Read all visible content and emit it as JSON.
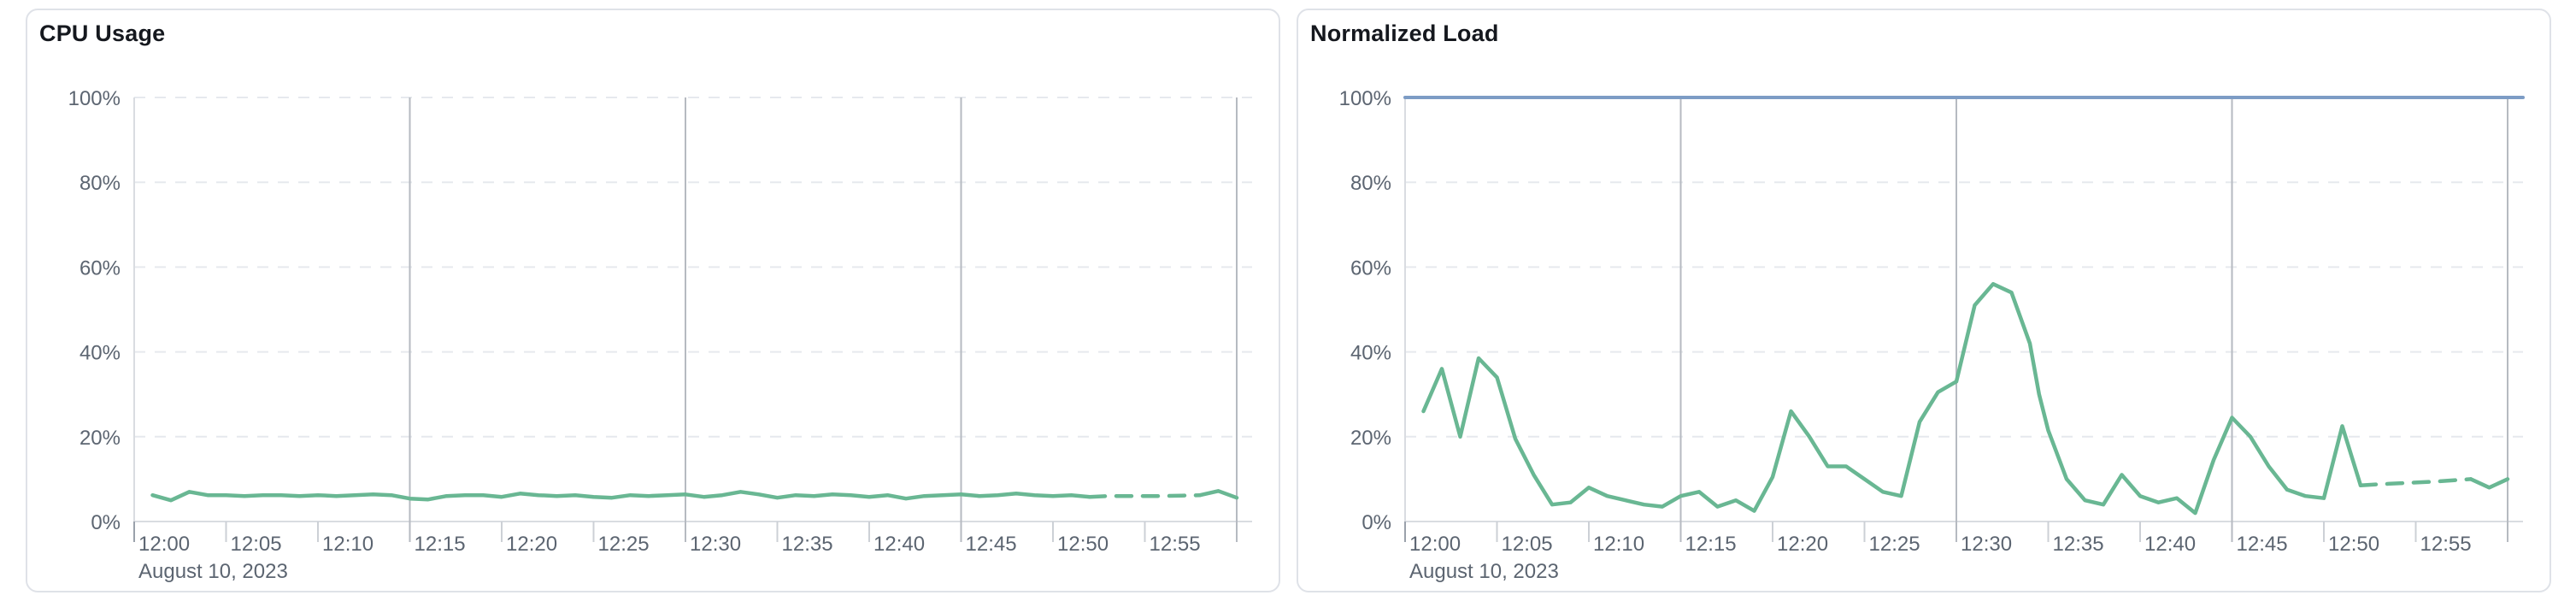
{
  "page": {
    "background": "#ffffff"
  },
  "colors": {
    "series_green": "#69b793",
    "limit_blue": "#7d9cc5",
    "grid_dashed": "#e6e9ee",
    "grid_major_vertical": "#b6bac1",
    "axis_line": "#d9dce1",
    "tick_minor": "#ccd0d6",
    "tick_edge": "#9aa1ab",
    "label_text": "#5c6571",
    "title_text": "#15181e"
  },
  "chart_data": [
    {
      "type": "line",
      "title": "CPU Usage",
      "date_label": "August 10, 2023",
      "xlim_minutes": [
        0,
        60
      ],
      "ylim_percent": [
        0,
        100
      ],
      "y_ticks_percent": [
        0,
        20,
        40,
        60,
        80,
        100
      ],
      "y_tick_suffix": "%",
      "x_ticks": [
        {
          "minute": 0,
          "label": "12:00"
        },
        {
          "minute": 5,
          "label": "12:05"
        },
        {
          "minute": 10,
          "label": "12:10"
        },
        {
          "minute": 15,
          "label": "12:15"
        },
        {
          "minute": 20,
          "label": "12:20"
        },
        {
          "minute": 25,
          "label": "12:25"
        },
        {
          "minute": 30,
          "label": "12:30"
        },
        {
          "minute": 35,
          "label": "12:35"
        },
        {
          "minute": 40,
          "label": "12:40"
        },
        {
          "minute": 45,
          "label": "12:45"
        },
        {
          "minute": 50,
          "label": "12:50"
        },
        {
          "minute": 55,
          "label": "12:55"
        }
      ],
      "major_gridline_minutes": [
        15,
        30,
        45,
        60
      ],
      "grid": {
        "horizontal": "dashed",
        "vertical_major": "solid"
      },
      "legend": "none",
      "series": [
        {
          "name": "cpu-usage-percent",
          "color": "#69b793",
          "width": 4.5,
          "unit": "%",
          "segments": [
            {
              "style": "solid",
              "points": [
                [
                  1,
                  6.2
                ],
                [
                  2,
                  5.0
                ],
                [
                  3,
                  7.0
                ],
                [
                  4,
                  6.2
                ],
                [
                  5,
                  6.2
                ],
                [
                  6,
                  6.0
                ],
                [
                  7,
                  6.2
                ],
                [
                  8,
                  6.2
                ],
                [
                  9,
                  6.0
                ],
                [
                  10,
                  6.2
                ],
                [
                  11,
                  6.0
                ],
                [
                  12,
                  6.2
                ],
                [
                  13,
                  6.4
                ],
                [
                  14,
                  6.2
                ],
                [
                  15,
                  5.4
                ],
                [
                  16,
                  5.2
                ],
                [
                  17,
                  6.0
                ],
                [
                  18,
                  6.2
                ],
                [
                  19,
                  6.2
                ],
                [
                  20,
                  5.8
                ],
                [
                  21,
                  6.6
                ],
                [
                  22,
                  6.2
                ],
                [
                  23,
                  6.0
                ],
                [
                  24,
                  6.2
                ],
                [
                  25,
                  5.8
                ],
                [
                  26,
                  5.6
                ],
                [
                  27,
                  6.2
                ],
                [
                  28,
                  6.0
                ],
                [
                  29,
                  6.2
                ],
                [
                  30,
                  6.4
                ],
                [
                  31,
                  5.8
                ],
                [
                  32,
                  6.2
                ],
                [
                  33,
                  7.0
                ],
                [
                  34,
                  6.4
                ],
                [
                  35,
                  5.6
                ],
                [
                  36,
                  6.2
                ],
                [
                  37,
                  6.0
                ],
                [
                  38,
                  6.4
                ],
                [
                  39,
                  6.2
                ],
                [
                  40,
                  5.8
                ],
                [
                  41,
                  6.2
                ],
                [
                  42,
                  5.4
                ],
                [
                  43,
                  6.0
                ],
                [
                  44,
                  6.2
                ],
                [
                  45,
                  6.4
                ],
                [
                  46,
                  6.0
                ],
                [
                  47,
                  6.2
                ],
                [
                  48,
                  6.6
                ],
                [
                  49,
                  6.2
                ],
                [
                  50,
                  6.0
                ],
                [
                  51,
                  6.2
                ],
                [
                  52,
                  5.8
                ]
              ]
            },
            {
              "style": "dashed",
              "points": [
                [
                  52,
                  5.8
                ],
                [
                  53,
                  6.0
                ],
                [
                  54,
                  6.0
                ],
                [
                  55,
                  6.0
                ],
                [
                  56,
                  6.0
                ],
                [
                  57,
                  6.1
                ],
                [
                  58,
                  6.2
                ]
              ]
            },
            {
              "style": "solid",
              "points": [
                [
                  58,
                  6.2
                ],
                [
                  59,
                  7.2
                ],
                [
                  60,
                  5.6
                ]
              ]
            }
          ]
        }
      ]
    },
    {
      "type": "line",
      "title": "Normalized Load",
      "date_label": "August 10, 2023",
      "xlim_minutes": [
        0,
        60
      ],
      "ylim_percent": [
        0,
        100
      ],
      "y_ticks_percent": [
        0,
        20,
        40,
        60,
        80,
        100
      ],
      "y_tick_suffix": "%",
      "x_ticks": [
        {
          "minute": 0,
          "label": "12:00"
        },
        {
          "minute": 5,
          "label": "12:05"
        },
        {
          "minute": 10,
          "label": "12:10"
        },
        {
          "minute": 15,
          "label": "12:15"
        },
        {
          "minute": 20,
          "label": "12:20"
        },
        {
          "minute": 25,
          "label": "12:25"
        },
        {
          "minute": 30,
          "label": "12:30"
        },
        {
          "minute": 35,
          "label": "12:35"
        },
        {
          "minute": 40,
          "label": "12:40"
        },
        {
          "minute": 45,
          "label": "12:45"
        },
        {
          "minute": 50,
          "label": "12:50"
        },
        {
          "minute": 55,
          "label": "12:55"
        }
      ],
      "major_gridline_minutes": [
        15,
        30,
        45,
        60
      ],
      "grid": {
        "horizontal": "dashed",
        "vertical_major": "solid"
      },
      "legend": "none",
      "series": [
        {
          "name": "normalized-load-percent",
          "color": "#69b793",
          "width": 4.5,
          "unit": "%",
          "segments": [
            {
              "style": "solid",
              "points": [
                [
                  1,
                  26
                ],
                [
                  2,
                  36
                ],
                [
                  3,
                  20
                ],
                [
                  4,
                  38.5
                ],
                [
                  5,
                  34
                ],
                [
                  6,
                  19.5
                ],
                [
                  7,
                  11
                ],
                [
                  8,
                  4
                ],
                [
                  9,
                  4.5
                ],
                [
                  10,
                  8
                ],
                [
                  11,
                  6
                ],
                [
                  12,
                  5
                ],
                [
                  13,
                  4
                ],
                [
                  14,
                  3.5
                ],
                [
                  15,
                  6
                ],
                [
                  16,
                  7
                ],
                [
                  17,
                  3.5
                ],
                [
                  18,
                  5
                ],
                [
                  19,
                  2.5
                ],
                [
                  20,
                  10.5
                ],
                [
                  21,
                  26
                ],
                [
                  22,
                  20
                ],
                [
                  23,
                  13
                ],
                [
                  24,
                  13
                ],
                [
                  25,
                  10
                ],
                [
                  26,
                  7
                ],
                [
                  27,
                  6
                ],
                [
                  28,
                  23.5
                ],
                [
                  29,
                  30.5
                ],
                [
                  30,
                  33
                ],
                [
                  31,
                  51
                ],
                [
                  32,
                  56
                ],
                [
                  33,
                  54
                ],
                [
                  34,
                  42
                ],
                [
                  34.5,
                  30
                ],
                [
                  35,
                  21.5
                ],
                [
                  36,
                  10
                ],
                [
                  37,
                  5
                ],
                [
                  38,
                  4
                ],
                [
                  39,
                  11
                ],
                [
                  40,
                  6
                ],
                [
                  41,
                  4.5
                ],
                [
                  42,
                  5.5
                ],
                [
                  43,
                  2
                ],
                [
                  44,
                  14.5
                ],
                [
                  45,
                  24.5
                ],
                [
                  46,
                  20
                ],
                [
                  47,
                  13
                ],
                [
                  48,
                  7.5
                ],
                [
                  49,
                  6
                ],
                [
                  50,
                  5.5
                ],
                [
                  51,
                  22.5
                ],
                [
                  52,
                  8.5
                ]
              ]
            },
            {
              "style": "dashed",
              "points": [
                [
                  52,
                  8.5
                ],
                [
                  53,
                  8.8
                ],
                [
                  54,
                  9
                ],
                [
                  55,
                  9.2
                ],
                [
                  56,
                  9.4
                ],
                [
                  57,
                  9.7
                ],
                [
                  58,
                  10
                ]
              ]
            },
            {
              "style": "solid",
              "points": [
                [
                  58,
                  10
                ],
                [
                  59,
                  8
                ],
                [
                  60,
                  10
                ]
              ]
            }
          ]
        },
        {
          "name": "limit-100-percent",
          "color": "#7d9cc5",
          "width": 4,
          "unit": "%",
          "full_width": true,
          "segments": [
            {
              "style": "solid",
              "points": [
                [
                  0,
                  100
                ],
                [
                  60,
                  100
                ]
              ]
            }
          ]
        }
      ]
    }
  ]
}
